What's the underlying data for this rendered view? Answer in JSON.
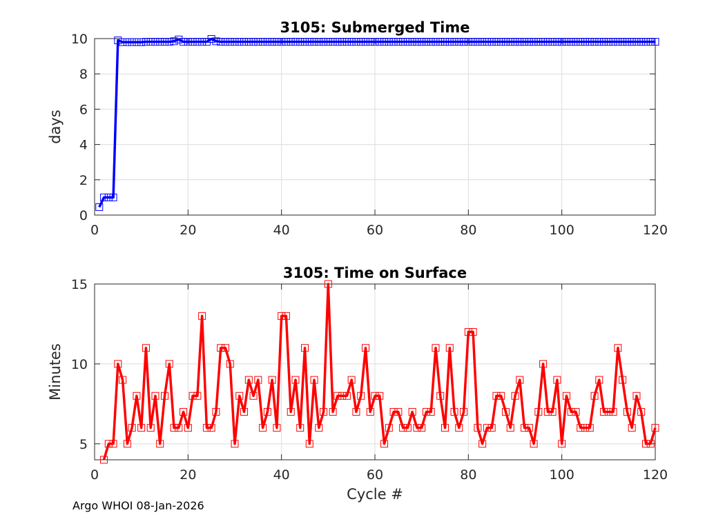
{
  "footer": "Argo WHOI 08-Jan-2026",
  "chart_data": [
    {
      "type": "line",
      "title": "3105: Submerged Time",
      "xlabel": "",
      "ylabel": "days",
      "xlim": [
        0,
        120
      ],
      "ylim": [
        0,
        10
      ],
      "xticks": [
        "0",
        "20",
        "40",
        "60",
        "80",
        "100",
        "120"
      ],
      "yticks": [
        "0",
        "2",
        "4",
        "6",
        "8",
        "10"
      ],
      "grid": true,
      "marker": "square",
      "color": "#0000ff",
      "x": [
        1,
        2,
        3,
        4,
        5,
        6,
        7,
        8,
        9,
        10,
        11,
        12,
        13,
        14,
        15,
        16,
        17,
        18,
        19,
        20,
        21,
        22,
        23,
        24,
        25,
        26,
        27,
        28,
        29,
        30,
        31,
        32,
        33,
        34,
        35,
        36,
        37,
        38,
        39,
        40,
        41,
        42,
        43,
        44,
        45,
        46,
        47,
        48,
        49,
        50,
        51,
        52,
        53,
        54,
        55,
        56,
        57,
        58,
        59,
        60,
        61,
        62,
        63,
        64,
        65,
        66,
        67,
        68,
        69,
        70,
        71,
        72,
        73,
        74,
        75,
        76,
        77,
        78,
        79,
        80,
        81,
        82,
        83,
        84,
        85,
        86,
        87,
        88,
        89,
        90,
        91,
        92,
        93,
        94,
        95,
        96,
        97,
        98,
        99,
        100,
        101,
        102,
        103,
        104,
        105,
        106,
        107,
        108,
        109,
        110,
        111,
        112,
        113,
        114,
        115,
        116,
        117,
        118,
        119,
        120
      ],
      "y": [
        0.45,
        1.0,
        1.0,
        1.0,
        9.9,
        9.8,
        9.8,
        9.8,
        9.8,
        9.8,
        9.82,
        9.82,
        9.82,
        9.82,
        9.82,
        9.82,
        9.85,
        9.95,
        9.82,
        9.82,
        9.82,
        9.82,
        9.82,
        9.82,
        9.98,
        9.85,
        9.82,
        9.82,
        9.82,
        9.82,
        9.82,
        9.82,
        9.82,
        9.82,
        9.82,
        9.82,
        9.82,
        9.82,
        9.82,
        9.82,
        9.82,
        9.82,
        9.82,
        9.82,
        9.82,
        9.82,
        9.82,
        9.82,
        9.82,
        9.82,
        9.82,
        9.82,
        9.82,
        9.82,
        9.82,
        9.82,
        9.82,
        9.82,
        9.82,
        9.82,
        9.82,
        9.82,
        9.82,
        9.82,
        9.82,
        9.82,
        9.82,
        9.82,
        9.82,
        9.82,
        9.82,
        9.82,
        9.82,
        9.82,
        9.82,
        9.82,
        9.82,
        9.82,
        9.82,
        9.82,
        9.82,
        9.82,
        9.82,
        9.82,
        9.82,
        9.82,
        9.82,
        9.82,
        9.82,
        9.82,
        9.82,
        9.82,
        9.82,
        9.82,
        9.82,
        9.82,
        9.82,
        9.82,
        9.82,
        9.82,
        9.82,
        9.82,
        9.82,
        9.82,
        9.82,
        9.82,
        9.82,
        9.82,
        9.82,
        9.82,
        9.82,
        9.82,
        9.82,
        9.82,
        9.82,
        9.82,
        9.82,
        9.82,
        9.82,
        9.82
      ]
    },
    {
      "type": "line",
      "title": "3105: Time on Surface",
      "xlabel": "Cycle #",
      "ylabel": "Minutes",
      "xlim": [
        0,
        120
      ],
      "ylim": [
        4,
        15
      ],
      "xticks": [
        "0",
        "20",
        "40",
        "60",
        "80",
        "100",
        "120"
      ],
      "yticks": [
        "5",
        "10",
        "15"
      ],
      "grid": true,
      "marker": "square",
      "color": "#ff0000",
      "x": [
        2,
        3,
        4,
        5,
        6,
        7,
        8,
        9,
        10,
        11,
        12,
        13,
        14,
        15,
        16,
        17,
        18,
        19,
        20,
        21,
        22,
        23,
        24,
        25,
        26,
        27,
        28,
        29,
        30,
        31,
        32,
        33,
        34,
        35,
        36,
        37,
        38,
        39,
        40,
        41,
        42,
        43,
        44,
        45,
        46,
        47,
        48,
        49,
        50,
        51,
        52,
        53,
        54,
        55,
        56,
        57,
        58,
        59,
        60,
        61,
        62,
        63,
        64,
        65,
        66,
        67,
        68,
        69,
        70,
        71,
        72,
        73,
        74,
        75,
        76,
        77,
        78,
        79,
        80,
        81,
        82,
        83,
        84,
        85,
        86,
        87,
        88,
        89,
        90,
        91,
        92,
        93,
        94,
        95,
        96,
        97,
        98,
        99,
        100,
        101,
        102,
        103,
        104,
        105,
        106,
        107,
        108,
        109,
        110,
        111,
        112,
        113,
        114,
        115,
        116,
        117,
        118,
        119,
        120
      ],
      "y": [
        4,
        5,
        5,
        10,
        9,
        5,
        6,
        8,
        6,
        11,
        6,
        8,
        5,
        8,
        10,
        6,
        6,
        7,
        6,
        8,
        8,
        13,
        6,
        6,
        7,
        11,
        11,
        10,
        5,
        8,
        7,
        9,
        8,
        9,
        6,
        7,
        9,
        6,
        13,
        13,
        7,
        9,
        6,
        11,
        5,
        9,
        6,
        7,
        15,
        7,
        8,
        8,
        8,
        9,
        7,
        8,
        11,
        7,
        8,
        8,
        5,
        6,
        7,
        7,
        6,
        6,
        7,
        6,
        6,
        7,
        7,
        11,
        8,
        6,
        11,
        7,
        6,
        7,
        12,
        12,
        6,
        5,
        6,
        6,
        8,
        8,
        7,
        6,
        8,
        9,
        6,
        6,
        5,
        7,
        10,
        7,
        7,
        9,
        5,
        8,
        7,
        7,
        6,
        6,
        6,
        8,
        9,
        7,
        7,
        7,
        11,
        9,
        7,
        6,
        8,
        7,
        5,
        5,
        6
      ]
    }
  ]
}
